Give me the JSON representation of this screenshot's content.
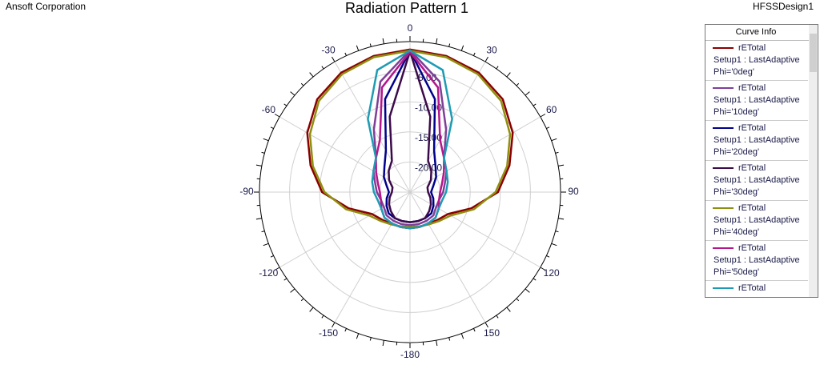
{
  "header": {
    "left": "Ansoft Corporation",
    "right": "HFSSDesign1"
  },
  "chart_data": {
    "type": "polar",
    "title": "Radiation Pattern 1",
    "legend_title": "Curve Info",
    "theta": [
      -180,
      -165,
      -150,
      -135,
      -120,
      -105,
      -90,
      -75,
      -60,
      -45,
      -30,
      -15,
      0,
      15,
      30,
      45,
      60,
      75,
      90,
      105,
      120,
      135,
      150,
      165,
      180
    ],
    "rlim": [
      -25,
      0
    ],
    "rticks": [
      {
        "value": -5,
        "label": "-5.00"
      },
      {
        "value": -10,
        "label": "-10.00"
      },
      {
        "value": -15,
        "label": "-15.00"
      },
      {
        "value": -20,
        "label": "-20.00"
      }
    ],
    "thetaticks": [
      0,
      30,
      60,
      90,
      120,
      150,
      -180,
      -150,
      -120,
      -90,
      -60,
      -30
    ],
    "grid": true,
    "series": [
      {
        "name": "rETotal",
        "setup": "Setup1 : LastAdaptive",
        "phi": "Phi='0deg'",
        "color": "#8b0000",
        "values": [
          -19.0,
          -19.0,
          -18.9,
          -18.5,
          -17.7,
          -14.5,
          -10.4,
          -7.9,
          -5.3,
          -3.2,
          -2.1,
          -1.6,
          -1.3,
          -1.6,
          -2.1,
          -3.2,
          -5.3,
          -7.9,
          -10.4,
          -14.5,
          -17.7,
          -18.5,
          -18.9,
          -19.0,
          -19.0
        ]
      },
      {
        "name": "rETotal",
        "setup": "Setup1 : LastAdaptive",
        "phi": "Phi='10deg'",
        "color": "#7f3f98",
        "values": [
          -19.5,
          -19.5,
          -19.5,
          -19.5,
          -20,
          -20,
          -19.5,
          -19,
          -18,
          -17,
          -13,
          -6,
          -1.4,
          -6,
          -13,
          -17,
          -18,
          -19,
          -19.5,
          -20,
          -20,
          -19.5,
          -19.5,
          -19.5,
          -19.5
        ]
      },
      {
        "name": "rETotal",
        "setup": "Setup1 : LastAdaptive",
        "phi": "Phi='20deg'",
        "color": "#00008b",
        "values": [
          -20,
          -20,
          -20,
          -20,
          -20.5,
          -21,
          -21.5,
          -21,
          -20,
          -19,
          -17,
          -9,
          -1.5,
          -9,
          -17,
          -19,
          -20,
          -21,
          -21.5,
          -21,
          -20.5,
          -20,
          -20,
          -20,
          -20
        ]
      },
      {
        "name": "rETotal",
        "setup": "Setup1 : LastAdaptive",
        "phi": "Phi='30deg'",
        "color": "#3c0a4a",
        "values": [
          -20,
          -20,
          -20,
          -20.5,
          -21,
          -21.5,
          -22,
          -22,
          -21,
          -20,
          -19,
          -12,
          -1.6,
          -12,
          -19,
          -20,
          -21,
          -22,
          -22,
          -21.5,
          -21,
          -20.5,
          -20,
          -20,
          -20
        ]
      },
      {
        "name": "rETotal",
        "setup": "Setup1 : LastAdaptive",
        "phi": "Phi='40deg'",
        "color": "#8f8f10",
        "values": [
          -19.2,
          -19.1,
          -18.8,
          -18.2,
          -17.2,
          -14.0,
          -10.8,
          -8.3,
          -5.8,
          -3.6,
          -2.4,
          -1.8,
          -1.5,
          -1.8,
          -2.4,
          -3.6,
          -5.8,
          -8.3,
          -10.8,
          -14.0,
          -17.2,
          -18.2,
          -18.8,
          -19.1,
          -19.2
        ]
      },
      {
        "name": "rETotal",
        "setup": "Setup1 : LastAdaptive",
        "phi": "Phi='50deg'",
        "color": "#b4168c",
        "values": [
          -19,
          -19,
          -19,
          -19,
          -19.5,
          -20,
          -20,
          -19.5,
          -18.5,
          -17,
          -15,
          -7,
          -1.7,
          -7,
          -15,
          -17,
          -18.5,
          -19.5,
          -20,
          -20,
          -19.5,
          -19,
          -19,
          -19,
          -19
        ]
      },
      {
        "name": "rETotal",
        "color": "#1e9bb4",
        "values": [
          -19,
          -19,
          -19,
          -19,
          -19.5,
          -19.5,
          -19,
          -18.5,
          -18,
          -17,
          -11,
          -4,
          -1.5,
          -4,
          -11,
          -17,
          -18,
          -18.5,
          -19,
          -19.5,
          -19.5,
          -19,
          -19,
          -19,
          -19
        ]
      }
    ]
  }
}
